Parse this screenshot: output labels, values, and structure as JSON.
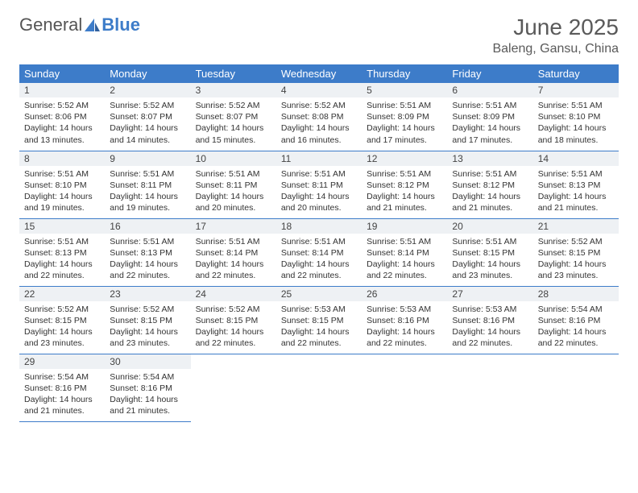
{
  "logo": {
    "text1": "General",
    "text2": "Blue"
  },
  "header": {
    "title": "June 2025",
    "location": "Baleng, Gansu, China"
  },
  "colors": {
    "accent": "#3d7cc9",
    "daybar_bg": "#eef1f4",
    "text": "#333333",
    "header_text": "#5a5a5a"
  },
  "weekdays": [
    "Sunday",
    "Monday",
    "Tuesday",
    "Wednesday",
    "Thursday",
    "Friday",
    "Saturday"
  ],
  "firstDayOffset": 0,
  "days": [
    {
      "n": 1,
      "sunrise": "5:52 AM",
      "sunset": "8:06 PM",
      "daylight": "14 hours and 13 minutes."
    },
    {
      "n": 2,
      "sunrise": "5:52 AM",
      "sunset": "8:07 PM",
      "daylight": "14 hours and 14 minutes."
    },
    {
      "n": 3,
      "sunrise": "5:52 AM",
      "sunset": "8:07 PM",
      "daylight": "14 hours and 15 minutes."
    },
    {
      "n": 4,
      "sunrise": "5:52 AM",
      "sunset": "8:08 PM",
      "daylight": "14 hours and 16 minutes."
    },
    {
      "n": 5,
      "sunrise": "5:51 AM",
      "sunset": "8:09 PM",
      "daylight": "14 hours and 17 minutes."
    },
    {
      "n": 6,
      "sunrise": "5:51 AM",
      "sunset": "8:09 PM",
      "daylight": "14 hours and 17 minutes."
    },
    {
      "n": 7,
      "sunrise": "5:51 AM",
      "sunset": "8:10 PM",
      "daylight": "14 hours and 18 minutes."
    },
    {
      "n": 8,
      "sunrise": "5:51 AM",
      "sunset": "8:10 PM",
      "daylight": "14 hours and 19 minutes."
    },
    {
      "n": 9,
      "sunrise": "5:51 AM",
      "sunset": "8:11 PM",
      "daylight": "14 hours and 19 minutes."
    },
    {
      "n": 10,
      "sunrise": "5:51 AM",
      "sunset": "8:11 PM",
      "daylight": "14 hours and 20 minutes."
    },
    {
      "n": 11,
      "sunrise": "5:51 AM",
      "sunset": "8:11 PM",
      "daylight": "14 hours and 20 minutes."
    },
    {
      "n": 12,
      "sunrise": "5:51 AM",
      "sunset": "8:12 PM",
      "daylight": "14 hours and 21 minutes."
    },
    {
      "n": 13,
      "sunrise": "5:51 AM",
      "sunset": "8:12 PM",
      "daylight": "14 hours and 21 minutes."
    },
    {
      "n": 14,
      "sunrise": "5:51 AM",
      "sunset": "8:13 PM",
      "daylight": "14 hours and 21 minutes."
    },
    {
      "n": 15,
      "sunrise": "5:51 AM",
      "sunset": "8:13 PM",
      "daylight": "14 hours and 22 minutes."
    },
    {
      "n": 16,
      "sunrise": "5:51 AM",
      "sunset": "8:13 PM",
      "daylight": "14 hours and 22 minutes."
    },
    {
      "n": 17,
      "sunrise": "5:51 AM",
      "sunset": "8:14 PM",
      "daylight": "14 hours and 22 minutes."
    },
    {
      "n": 18,
      "sunrise": "5:51 AM",
      "sunset": "8:14 PM",
      "daylight": "14 hours and 22 minutes."
    },
    {
      "n": 19,
      "sunrise": "5:51 AM",
      "sunset": "8:14 PM",
      "daylight": "14 hours and 22 minutes."
    },
    {
      "n": 20,
      "sunrise": "5:51 AM",
      "sunset": "8:15 PM",
      "daylight": "14 hours and 23 minutes."
    },
    {
      "n": 21,
      "sunrise": "5:52 AM",
      "sunset": "8:15 PM",
      "daylight": "14 hours and 23 minutes."
    },
    {
      "n": 22,
      "sunrise": "5:52 AM",
      "sunset": "8:15 PM",
      "daylight": "14 hours and 23 minutes."
    },
    {
      "n": 23,
      "sunrise": "5:52 AM",
      "sunset": "8:15 PM",
      "daylight": "14 hours and 23 minutes."
    },
    {
      "n": 24,
      "sunrise": "5:52 AM",
      "sunset": "8:15 PM",
      "daylight": "14 hours and 22 minutes."
    },
    {
      "n": 25,
      "sunrise": "5:53 AM",
      "sunset": "8:15 PM",
      "daylight": "14 hours and 22 minutes."
    },
    {
      "n": 26,
      "sunrise": "5:53 AM",
      "sunset": "8:16 PM",
      "daylight": "14 hours and 22 minutes."
    },
    {
      "n": 27,
      "sunrise": "5:53 AM",
      "sunset": "8:16 PM",
      "daylight": "14 hours and 22 minutes."
    },
    {
      "n": 28,
      "sunrise": "5:54 AM",
      "sunset": "8:16 PM",
      "daylight": "14 hours and 22 minutes."
    },
    {
      "n": 29,
      "sunrise": "5:54 AM",
      "sunset": "8:16 PM",
      "daylight": "14 hours and 21 minutes."
    },
    {
      "n": 30,
      "sunrise": "5:54 AM",
      "sunset": "8:16 PM",
      "daylight": "14 hours and 21 minutes."
    }
  ],
  "labels": {
    "sunrise": "Sunrise:",
    "sunset": "Sunset:",
    "daylight": "Daylight:"
  }
}
